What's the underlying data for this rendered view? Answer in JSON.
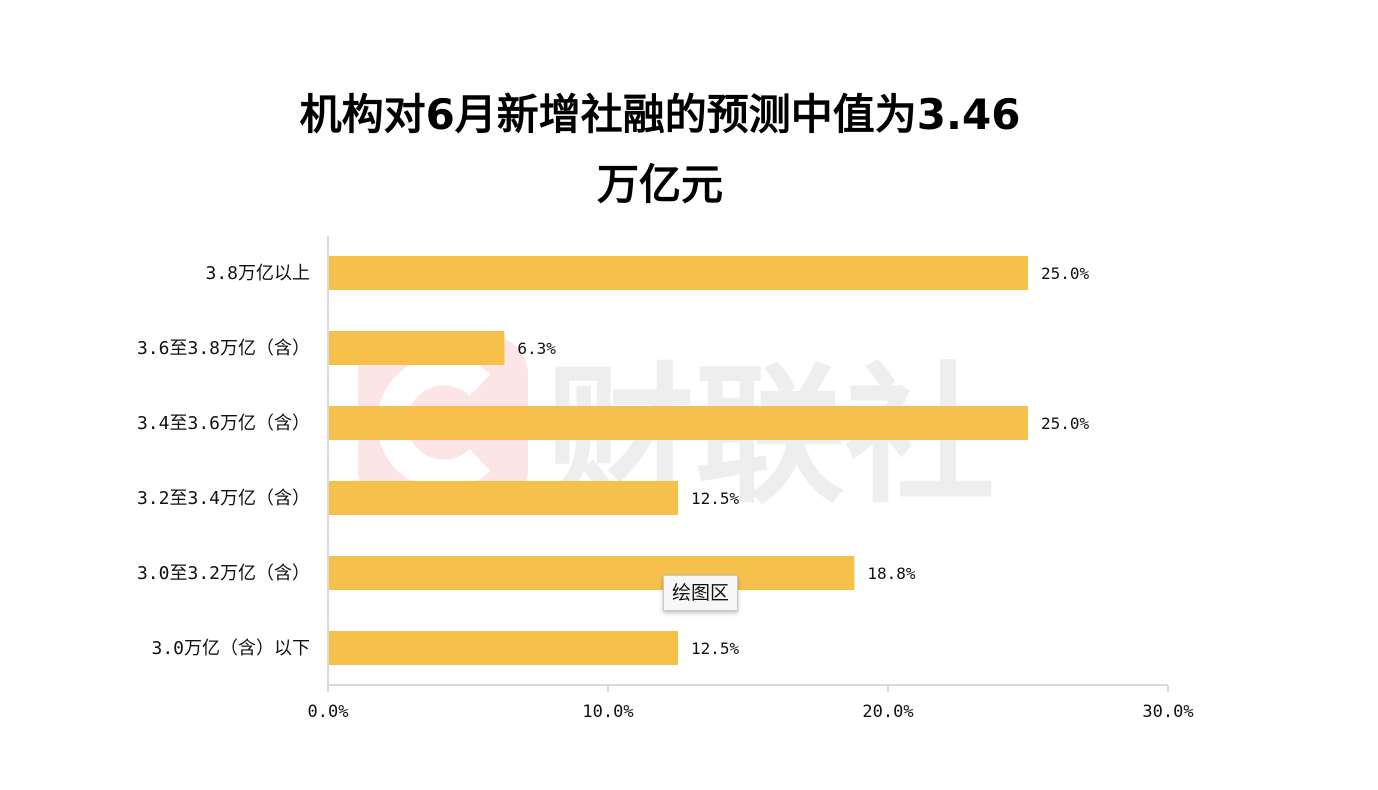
{
  "chart_data": {
    "type": "bar",
    "orientation": "horizontal",
    "title_lines": [
      "机构对6月新增社融的预测中值为3.46",
      "万亿元"
    ],
    "categories": [
      "3.8万亿以上",
      "3.6至3.8万亿（含）",
      "3.4至3.6万亿（含）",
      "3.2至3.4万亿（含）",
      "3.0至3.2万亿（含）",
      "3.0万亿（含）以下"
    ],
    "values": [
      25.0,
      6.3,
      25.0,
      12.5,
      18.8,
      12.5
    ],
    "value_labels": [
      "25.0%",
      "6.3%",
      "25.0%",
      "12.5%",
      "18.8%",
      "12.5%"
    ],
    "xlim": [
      0,
      30
    ],
    "xticks": [
      0,
      10,
      20,
      30
    ],
    "xtick_labels": [
      "0.0%",
      "10.0%",
      "20.0%",
      "30.0%"
    ],
    "xlabel": "",
    "ylabel": "",
    "grid": false,
    "bar_color": "#F5BE41",
    "axis_color": "#D9D9D9"
  },
  "watermark": {
    "text": "财联社",
    "color": "#E8303A"
  },
  "tooltip": {
    "text": "绘图区"
  }
}
